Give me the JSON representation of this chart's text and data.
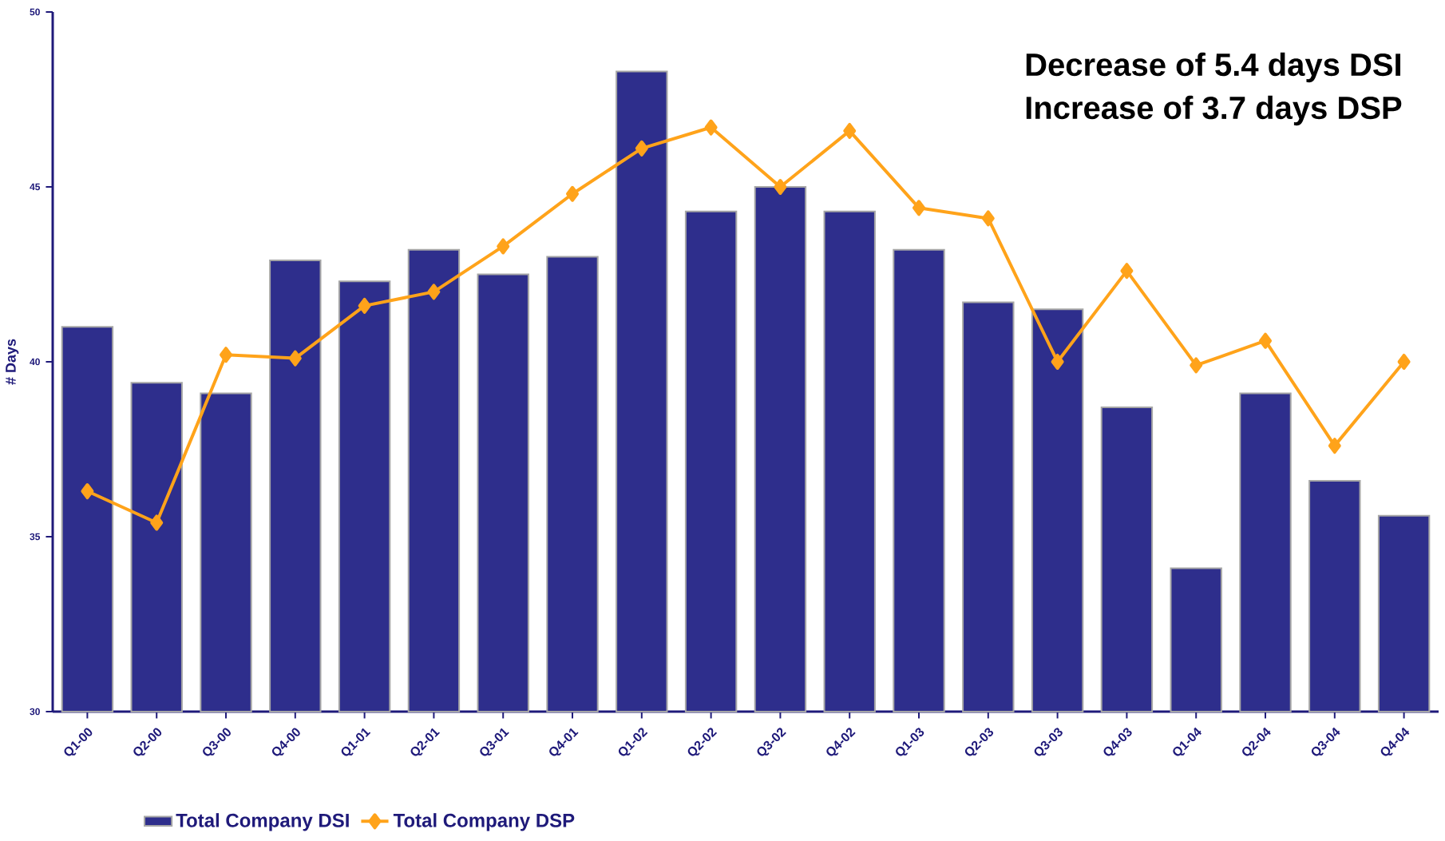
{
  "chart_data": {
    "type": "bar",
    "categories": [
      "Q1-00",
      "Q2-00",
      "Q3-00",
      "Q4-00",
      "Q1-01",
      "Q2-01",
      "Q3-01",
      "Q4-01",
      "Q1-02",
      "Q2-02",
      "Q3-02",
      "Q4-02",
      "Q1-03",
      "Q2-03",
      "Q3-03",
      "Q4-03",
      "Q1-04",
      "Q2-04",
      "Q3-04",
      "Q4-04"
    ],
    "ylabel": "# Days",
    "ylim": [
      30,
      50
    ],
    "yticks": [
      30,
      35,
      40,
      45,
      50
    ],
    "series": [
      {
        "name": "Total Company DSI",
        "color": "#2e2e8c",
        "values": [
          41.0,
          39.4,
          39.1,
          42.9,
          42.3,
          43.2,
          42.5,
          43.0,
          48.3,
          44.3,
          45.0,
          44.3,
          43.2,
          41.7,
          41.5,
          38.7,
          34.1,
          39.1,
          36.6,
          35.6
        ]
      },
      {
        "name": "Total Company DSP",
        "type": "line",
        "color": "#ffa31a",
        "marker": "diamond",
        "values": [
          36.3,
          35.4,
          40.2,
          40.1,
          41.6,
          42.0,
          43.3,
          44.8,
          46.1,
          46.7,
          45.0,
          46.6,
          44.4,
          44.1,
          40.0,
          42.6,
          39.9,
          40.6,
          37.6,
          40.0
        ]
      }
    ],
    "annotations": [
      "Decrease of 5.4 days DSI",
      "Increase of 3.7 days DSP"
    ],
    "legend": "bottom left"
  }
}
